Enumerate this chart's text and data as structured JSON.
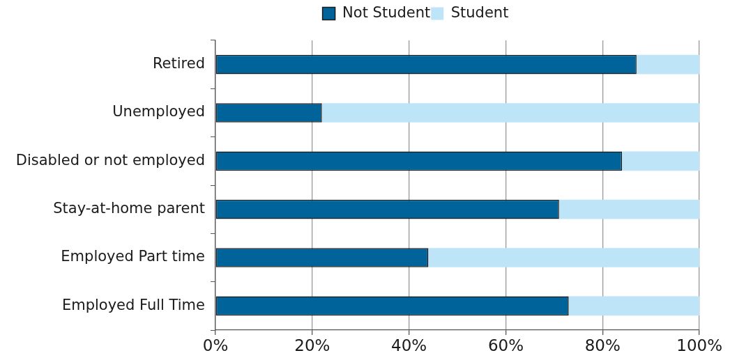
{
  "chart_data": {
    "type": "bar",
    "orientation": "horizontal",
    "stacked": true,
    "categories": [
      "Retired",
      "Unemployed",
      "Disabled or not employed",
      "Stay-at-home parent",
      "Employed Part time",
      "Employed Full Time"
    ],
    "series": [
      {
        "name": "Not Student",
        "color": "#00639a",
        "values": [
          87,
          22,
          84,
          71,
          44,
          73
        ]
      },
      {
        "name": "Student",
        "color": "#bde4f7",
        "values": [
          13,
          78,
          16,
          29,
          56,
          27
        ]
      }
    ],
    "xlim": [
      0,
      100
    ],
    "xticks": [
      {
        "value": 0,
        "label": "0%"
      },
      {
        "value": 20,
        "label": "20%"
      },
      {
        "value": 40,
        "label": "40%"
      },
      {
        "value": 60,
        "label": "60%"
      },
      {
        "value": 80,
        "label": "80%"
      },
      {
        "value": 100,
        "label": "100%"
      }
    ],
    "grid": "x",
    "legend": "top"
  }
}
